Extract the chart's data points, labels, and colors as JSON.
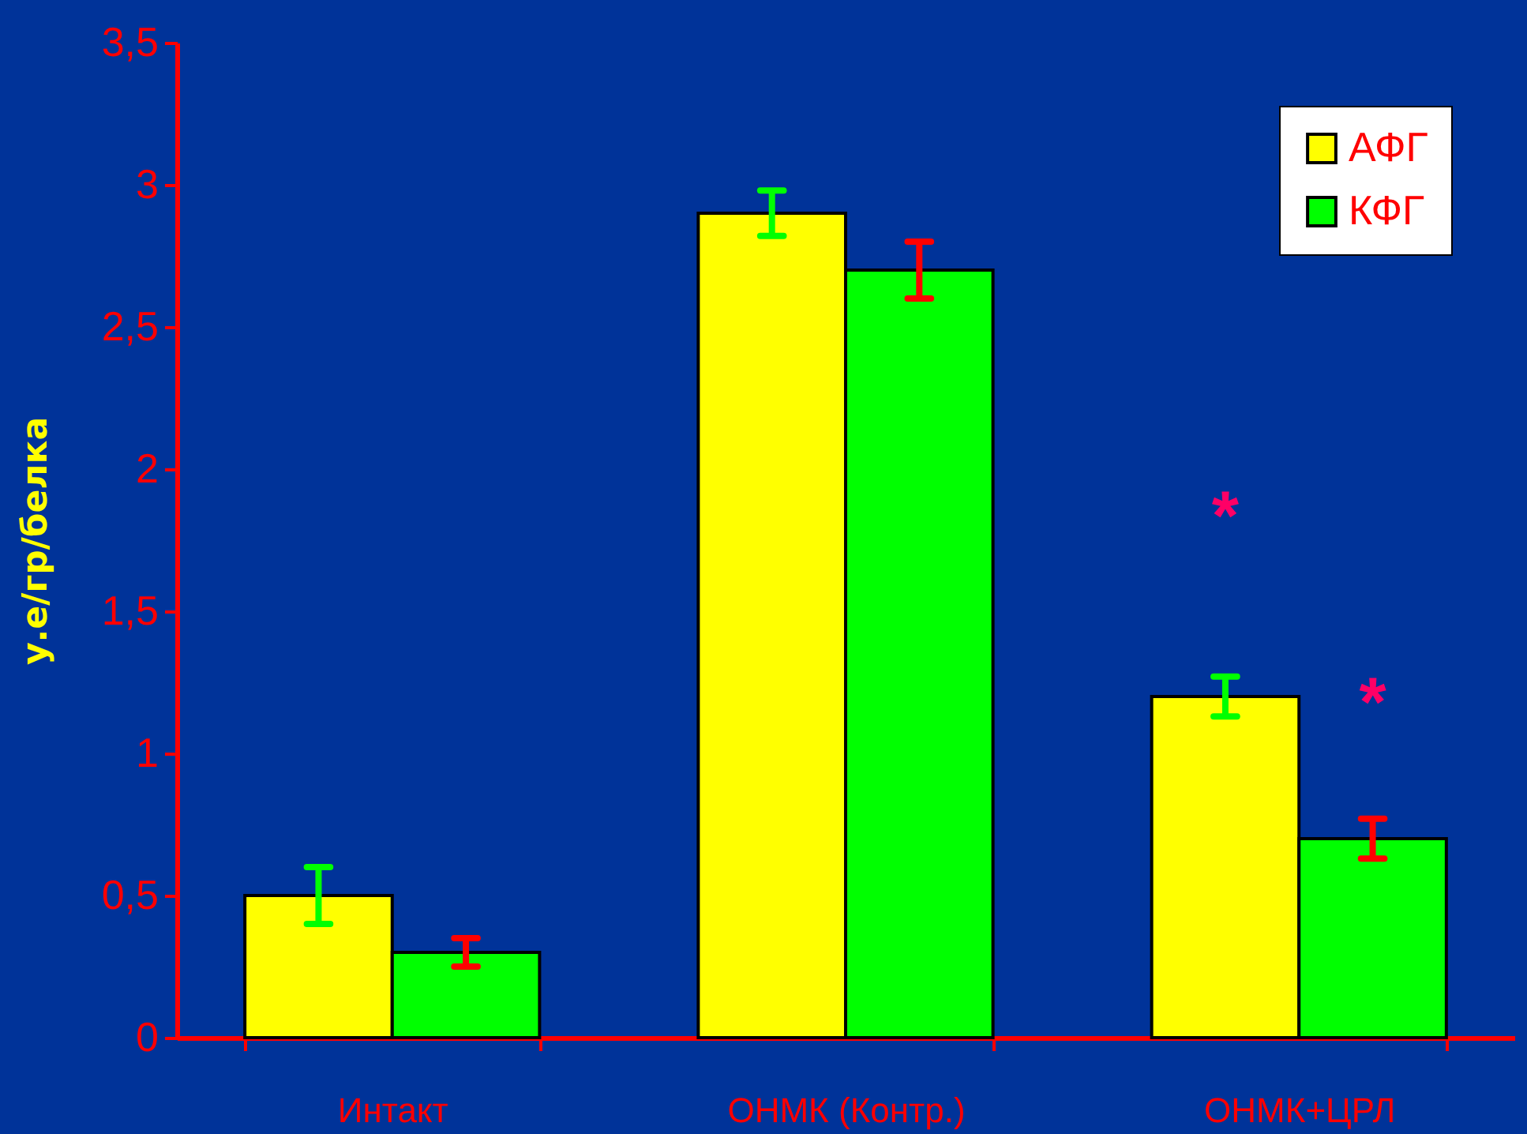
{
  "chart_data": {
    "type": "bar",
    "ylabel": "у.е/гр/белка",
    "categories": [
      "Интакт",
      "ОНМК (Контр.)",
      "ОНМК+ЦРЛ"
    ],
    "series": [
      {
        "name": "АФГ",
        "color": "#ffff00",
        "values": [
          0.5,
          2.9,
          1.2
        ],
        "errors": [
          0.1,
          0.08,
          0.07
        ]
      },
      {
        "name": "КФГ",
        "color": "#00ff00",
        "values": [
          0.3,
          2.7,
          0.7
        ],
        "errors": [
          0.05,
          0.1,
          0.07
        ]
      }
    ],
    "ylim": [
      0,
      3.5
    ],
    "yticks": [
      0,
      {
        "value": 0.5,
        "label": "0,5"
      },
      1,
      {
        "value": 1.5,
        "label": "1,5"
      },
      2,
      {
        "value": 2.5,
        "label": "2,5"
      },
      3,
      {
        "value": 3.5,
        "label": "3,5"
      }
    ],
    "annotations": [
      "*",
      "*"
    ],
    "legend": "top right",
    "grid": false
  }
}
